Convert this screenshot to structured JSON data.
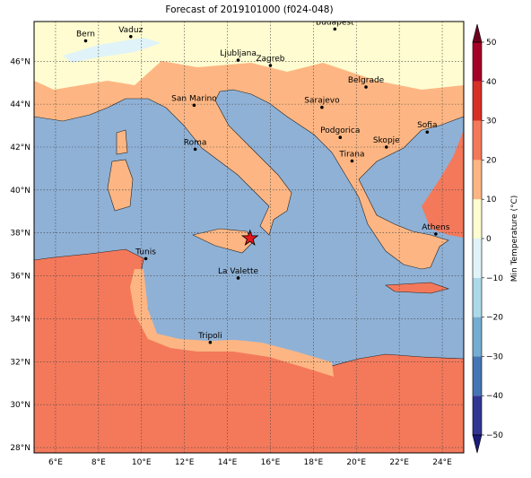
{
  "map": {
    "title": "Forecast of 2019101000 (f024-048)",
    "lonlim": [
      5,
      25
    ],
    "latlim": [
      27.75,
      47.85
    ],
    "lon_ticks": [
      {
        "value": 6,
        "label": "6°E"
      },
      {
        "value": 8,
        "label": "8°E"
      },
      {
        "value": 10,
        "label": "10°E"
      },
      {
        "value": 12,
        "label": "12°E"
      },
      {
        "value": 14,
        "label": "14°E"
      },
      {
        "value": 16,
        "label": "16°E"
      },
      {
        "value": 18,
        "label": "18°E"
      },
      {
        "value": 20,
        "label": "20°E"
      },
      {
        "value": 22,
        "label": "22°E"
      },
      {
        "value": 24,
        "label": "24°E"
      }
    ],
    "lat_ticks": [
      {
        "value": 28,
        "label": "28°N"
      },
      {
        "value": 30,
        "label": "30°N"
      },
      {
        "value": 32,
        "label": "32°N"
      },
      {
        "value": 34,
        "label": "34°N"
      },
      {
        "value": 36,
        "label": "36°N"
      },
      {
        "value": 38,
        "label": "38°N"
      },
      {
        "value": 40,
        "label": "40°N"
      },
      {
        "value": 42,
        "label": "42°N"
      },
      {
        "value": 44,
        "label": "44°N"
      },
      {
        "value": 46,
        "label": "46°N"
      }
    ],
    "grid": true,
    "cities": [
      {
        "name": "Bern",
        "lon": 7.4,
        "lat": 46.95
      },
      {
        "name": "Vaduz",
        "lon": 9.5,
        "lat": 47.15
      },
      {
        "name": "Budapest",
        "lon": 19.0,
        "lat": 47.5
      },
      {
        "name": "Ljubljana",
        "lon": 14.5,
        "lat": 46.05
      },
      {
        "name": "Zagreb",
        "lon": 16.0,
        "lat": 45.8
      },
      {
        "name": "Belgrade",
        "lon": 20.45,
        "lat": 44.8
      },
      {
        "name": "Sarajevo",
        "lon": 18.4,
        "lat": 43.85
      },
      {
        "name": "San Marino",
        "lon": 12.45,
        "lat": 43.95
      },
      {
        "name": "Sofia",
        "lon": 23.3,
        "lat": 42.7
      },
      {
        "name": "Podgorica",
        "lon": 19.25,
        "lat": 42.45
      },
      {
        "name": "Skopje",
        "lon": 21.4,
        "lat": 42.0
      },
      {
        "name": "Roma",
        "lon": 12.5,
        "lat": 41.9
      },
      {
        "name": "Tirana",
        "lon": 19.8,
        "lat": 41.35
      },
      {
        "name": "Athens",
        "lon": 23.7,
        "lat": 37.95
      },
      {
        "name": "Tunis",
        "lon": 10.2,
        "lat": 36.8
      },
      {
        "name": "La Valette",
        "lon": 14.5,
        "lat": 35.9
      },
      {
        "name": "Tripoli",
        "lon": 13.2,
        "lat": 32.9
      }
    ],
    "star": {
      "lon": 15.05,
      "lat": 37.75,
      "color": "#e8161b"
    },
    "colorbar": {
      "label": "Min Temperature (°C)",
      "ticks": [
        {
          "value": -50,
          "label": "−50"
        },
        {
          "value": -40,
          "label": "−40"
        },
        {
          "value": -30,
          "label": "−30"
        },
        {
          "value": -20,
          "label": "−20"
        },
        {
          "value": -10,
          "label": "−10"
        },
        0,
        10,
        20,
        30,
        40,
        50
      ],
      "colors": [
        "#313695",
        "#4575b4",
        "#74add1",
        "#abd9e9",
        "#e0f3f8",
        "#fefcd0",
        "#fdb683",
        "#f4795b",
        "#d73027",
        "#a50026"
      ],
      "under_color": "#1c1c78",
      "over_color": "#6e0020"
    }
  }
}
